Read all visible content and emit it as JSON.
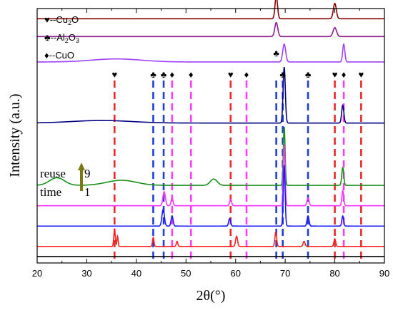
{
  "chart_data": {
    "type": "line",
    "xlabel": "2θ(°)",
    "ylabel": "Intensity (a.u.)",
    "xlim": [
      20,
      90
    ],
    "x_ticks": [
      20,
      30,
      40,
      50,
      60,
      70,
      80,
      90
    ],
    "grid": false,
    "legend": {
      "position": "top-left",
      "entries": [
        {
          "symbol": "♥",
          "text": "--Cu",
          "sub": "2",
          "tail": "O"
        },
        {
          "symbol": "♣",
          "text": "--Al",
          "sub": "2",
          "tail": "O",
          "sub2": "3"
        },
        {
          "symbol": "♦",
          "text": "--CuO"
        }
      ]
    },
    "annotation": {
      "line1": "reuse",
      "line2": "time",
      "top": "9",
      "bottom": "1",
      "arrow_color": "#7a7a10"
    },
    "reference_lines": [
      {
        "x": 35.6,
        "phase": "Cu2O",
        "color": "#e8282b"
      },
      {
        "x": 43.4,
        "phase": "Al2O3",
        "color": "#1f3fd6"
      },
      {
        "x": 45.5,
        "phase": "Al2O3",
        "color": "#1f3fd6"
      },
      {
        "x": 47.2,
        "phase": "CuO",
        "color": "#ff3cff"
      },
      {
        "x": 51.0,
        "phase": "CuO",
        "color": "#ff3cff"
      },
      {
        "x": 59.0,
        "phase": "Cu2O",
        "color": "#e8282b"
      },
      {
        "x": 62.2,
        "phase": "CuO",
        "color": "#ff3cff"
      },
      {
        "x": 68.2,
        "phase": "Al2O3",
        "color": "#1f3fd6"
      },
      {
        "x": 69.5,
        "phase": "Al2O3",
        "color": "#1f3fd6"
      },
      {
        "x": 74.6,
        "phase": "Al2O3",
        "color": "#1f3fd6"
      },
      {
        "x": 80.0,
        "phase": "Cu2O",
        "color": "#e8282b"
      },
      {
        "x": 81.8,
        "phase": "CuO",
        "color": "#ff3cff"
      },
      {
        "x": 85.3,
        "phase": "Cu2O",
        "color": "#e8282b"
      }
    ],
    "markers": [
      {
        "x": 35.6,
        "symbol": "♥"
      },
      {
        "x": 43.4,
        "symbol": "♣"
      },
      {
        "x": 45.5,
        "symbol": "♣"
      },
      {
        "x": 47.2,
        "symbol": "♦"
      },
      {
        "x": 51.0,
        "symbol": "♦"
      },
      {
        "x": 59.0,
        "symbol": "♥"
      },
      {
        "x": 62.2,
        "symbol": "♦"
      },
      {
        "x": 68.2,
        "symbol": "♣",
        "raised": true
      },
      {
        "x": 69.5,
        "symbol": "♣"
      },
      {
        "x": 74.6,
        "symbol": "♣"
      },
      {
        "x": 80.0,
        "symbol": "♥"
      },
      {
        "x": 81.8,
        "symbol": "♦"
      },
      {
        "x": 85.3,
        "symbol": "♥"
      }
    ],
    "series": [
      {
        "color": "#8b0000",
        "baseline": 0.96,
        "peaks": [
          [
            68.2,
            0.09,
            0.25
          ],
          [
            80.0,
            0.06,
            0.3
          ]
        ]
      },
      {
        "color": "#8b1a8b",
        "baseline": 0.89,
        "peaks": [
          [
            68.2,
            0.055,
            0.3
          ],
          [
            80.0,
            0.035,
            0.35
          ]
        ]
      },
      {
        "color": "#a040ff",
        "baseline": 0.79,
        "bumps": [
          [
            36,
            0.012,
            5
          ]
        ],
        "peaks": [
          [
            69.8,
            0.07,
            0.3
          ],
          [
            81.8,
            0.07,
            0.22
          ]
        ]
      },
      {
        "color": "#000080",
        "baseline": 0.55,
        "bumps": [
          [
            33,
            0.01,
            6
          ]
        ],
        "peaks": [
          [
            69.8,
            0.22,
            0.22
          ],
          [
            81.6,
            0.07,
            0.22
          ]
        ]
      },
      {
        "color": "#1a8f1a",
        "baseline": 0.305,
        "bumps": [
          [
            24,
            0.03,
            1.5
          ],
          [
            37,
            0.02,
            3
          ],
          [
            55.6,
            0.025,
            0.7
          ]
        ],
        "peaks": [
          [
            69.8,
            0.23,
            0.18
          ],
          [
            81.6,
            0.07,
            0.2
          ]
        ]
      },
      {
        "color": "#ff33ff",
        "baseline": 0.225,
        "peaks": [
          [
            45.6,
            0.055,
            0.25
          ],
          [
            47.2,
            0.03,
            0.2
          ],
          [
            59.0,
            0.025,
            0.2
          ],
          [
            69.8,
            0.24,
            0.18
          ],
          [
            74.6,
            0.03,
            0.22
          ],
          [
            81.6,
            0.06,
            0.18
          ]
        ]
      },
      {
        "color": "#1a1aff",
        "baseline": 0.145,
        "peaks": [
          [
            45.4,
            0.065,
            0.25
          ],
          [
            47.2,
            0.04,
            0.2
          ],
          [
            58.8,
            0.03,
            0.2
          ],
          [
            69.8,
            0.24,
            0.18
          ],
          [
            74.6,
            0.04,
            0.2
          ],
          [
            81.6,
            0.04,
            0.18
          ]
        ]
      },
      {
        "color": "#ff2020",
        "baseline": 0.065,
        "peaks": [
          [
            35.6,
            0.065,
            0.15
          ],
          [
            36.2,
            0.04,
            0.12
          ],
          [
            43.4,
            0.035,
            0.15
          ],
          [
            48.2,
            0.02,
            0.15
          ],
          [
            60.2,
            0.04,
            0.2
          ],
          [
            68.1,
            0.055,
            0.18
          ],
          [
            73.8,
            0.02,
            0.2
          ],
          [
            80.0,
            0.03,
            0.18
          ]
        ]
      },
      {
        "color": "#000000",
        "baseline": 0.025,
        "peaks": []
      }
    ]
  }
}
